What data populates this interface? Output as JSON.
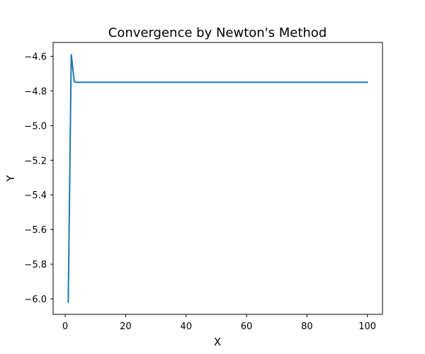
{
  "chart_data": {
    "type": "line",
    "title": "Convergence by Newton's Method",
    "xlabel": "X",
    "ylabel": "Y",
    "xlim": [
      -4,
      105
    ],
    "ylim": [
      -6.09,
      -4.52
    ],
    "xticks": [
      0,
      20,
      40,
      60,
      80,
      100
    ],
    "yticks": [
      -6.0,
      -5.8,
      -5.6,
      -5.4,
      -5.2,
      -5.0,
      -4.8,
      -4.6
    ],
    "xtick_labels": [
      "0",
      "20",
      "40",
      "60",
      "80",
      "100"
    ],
    "ytick_labels": [
      "−6.0",
      "−5.8",
      "−5.6",
      "−5.4",
      "−5.2",
      "−5.0",
      "−4.8",
      "−4.6"
    ],
    "grid": false,
    "series": [
      {
        "color": "#1f77b4",
        "x": [
          1,
          2,
          3,
          4,
          5,
          10,
          20,
          30,
          40,
          50,
          60,
          70,
          80,
          90,
          100
        ],
        "y": [
          -6.02,
          -4.59,
          -4.747,
          -4.75,
          -4.75,
          -4.75,
          -4.75,
          -4.75,
          -4.75,
          -4.75,
          -4.75,
          -4.75,
          -4.75,
          -4.75,
          -4.75
        ]
      }
    ]
  }
}
